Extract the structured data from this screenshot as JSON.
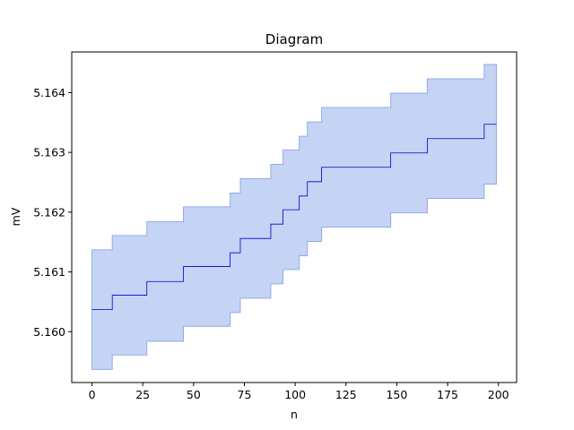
{
  "chart_data": {
    "type": "area",
    "title": "Diagram",
    "xlabel": "n",
    "ylabel": "mV",
    "xlim": [
      -9.95,
      208.95
    ],
    "ylim": [
      5.15915,
      5.16468
    ],
    "xticks": [
      0,
      25,
      50,
      75,
      100,
      125,
      150,
      175,
      200
    ],
    "xtick_labels": [
      "0",
      "25",
      "50",
      "75",
      "100",
      "125",
      "150",
      "175",
      "200"
    ],
    "yticks": [
      5.16,
      5.161,
      5.162,
      5.163,
      5.164
    ],
    "ytick_labels": [
      "5.160",
      "5.161",
      "5.162",
      "5.163",
      "5.164"
    ],
    "grid": false,
    "colors": {
      "band_fill": "#c5d3f5",
      "band_edge": "#94aae6",
      "line": "#0000cc"
    },
    "series": [
      {
        "x": [
          0,
          10,
          27,
          45,
          68,
          73,
          88,
          94,
          102,
          106,
          113,
          147,
          165,
          193,
          199
        ],
        "y": [
          5.16037,
          5.16061,
          5.16084,
          5.16109,
          5.16132,
          5.16156,
          5.1618,
          5.16204,
          5.16227,
          5.16251,
          5.16275,
          5.16299,
          5.16323,
          5.16347,
          5.16347
        ],
        "lower": [
          5.15937,
          5.15961,
          5.15984,
          5.16009,
          5.16032,
          5.16056,
          5.1608,
          5.16104,
          5.16127,
          5.16151,
          5.16175,
          5.16199,
          5.16223,
          5.16247,
          5.16247
        ],
        "upper": [
          5.16137,
          5.16161,
          5.16184,
          5.16209,
          5.16232,
          5.16256,
          5.1628,
          5.16304,
          5.16327,
          5.16351,
          5.16375,
          5.16399,
          5.16423,
          5.16447,
          5.16447
        ]
      }
    ]
  }
}
